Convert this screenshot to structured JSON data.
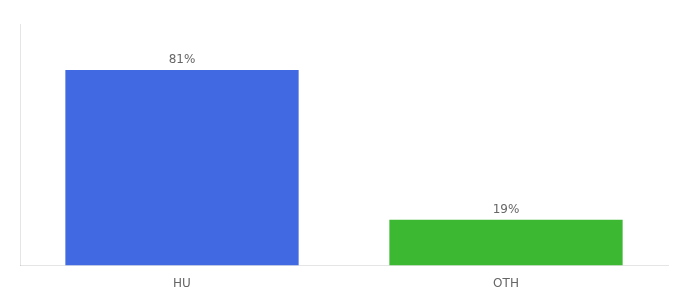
{
  "chart_data": {
    "type": "bar",
    "categories": [
      "HU",
      "OTH"
    ],
    "values": [
      81,
      19
    ],
    "colors": [
      "#4169e1",
      "#3cb832"
    ],
    "value_labels": [
      "81%",
      "19%"
    ],
    "data_labels": true,
    "ylim": [
      0,
      100
    ],
    "yticks": [],
    "tick_labels": "x",
    "grid": false
  }
}
